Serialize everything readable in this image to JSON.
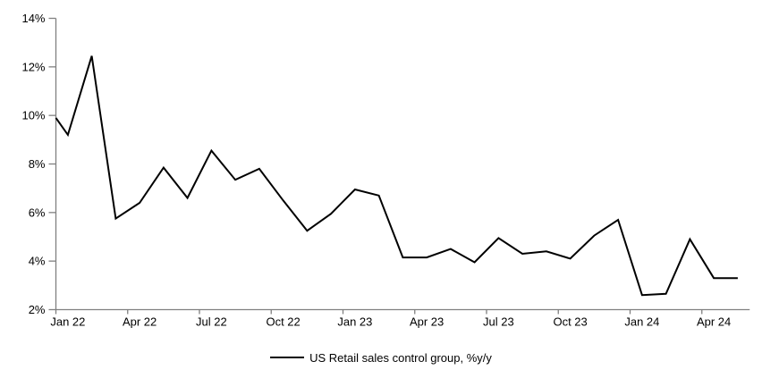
{
  "chart_data": {
    "type": "line",
    "title": "",
    "legend_label": "US Retail sales control group, %y/y",
    "legend_position": "bottom-center",
    "grid": "off",
    "line_color": "#000000",
    "axis_color": "#808080",
    "ylim": [
      2,
      14
    ],
    "y_tick_step": 2,
    "y_tick_labels": [
      "2%",
      "4%",
      "6%",
      "8%",
      "10%",
      "12%",
      "14%"
    ],
    "x_tick_labels": [
      "Jan 22",
      "Apr 22",
      "Jul 22",
      "Oct 22",
      "Jan 23",
      "Apr 23",
      "Jul 23",
      "Oct 23",
      "Jan 24",
      "Apr 24"
    ],
    "x": [
      "Jan 22",
      "Feb 22",
      "Mar 22",
      "Apr 22",
      "May 22",
      "Jun 22",
      "Jul 22",
      "Aug 22",
      "Sep 22",
      "Oct 22",
      "Nov 22",
      "Dec 22",
      "Jan 23",
      "Feb 23",
      "Mar 23",
      "Apr 23",
      "May 23",
      "Jun 23",
      "Jul 23",
      "Aug 23",
      "Sep 23",
      "Oct 23",
      "Nov 23",
      "Dec 23",
      "Jan 24",
      "Feb 24",
      "Mar 24",
      "Apr 24",
      "May 24"
    ],
    "values": [
      9.2,
      12.45,
      5.75,
      6.4,
      7.85,
      6.6,
      8.55,
      7.35,
      7.8,
      6.5,
      5.25,
      5.95,
      6.95,
      6.7,
      4.15,
      4.15,
      4.5,
      3.95,
      4.95,
      4.3,
      4.4,
      4.1,
      5.05,
      5.7,
      2.6,
      2.65,
      4.9,
      3.3,
      3.3
    ],
    "axis_left_entry_value": 9.9
  },
  "legend": {
    "label": "US Retail sales control group, %y/y"
  }
}
